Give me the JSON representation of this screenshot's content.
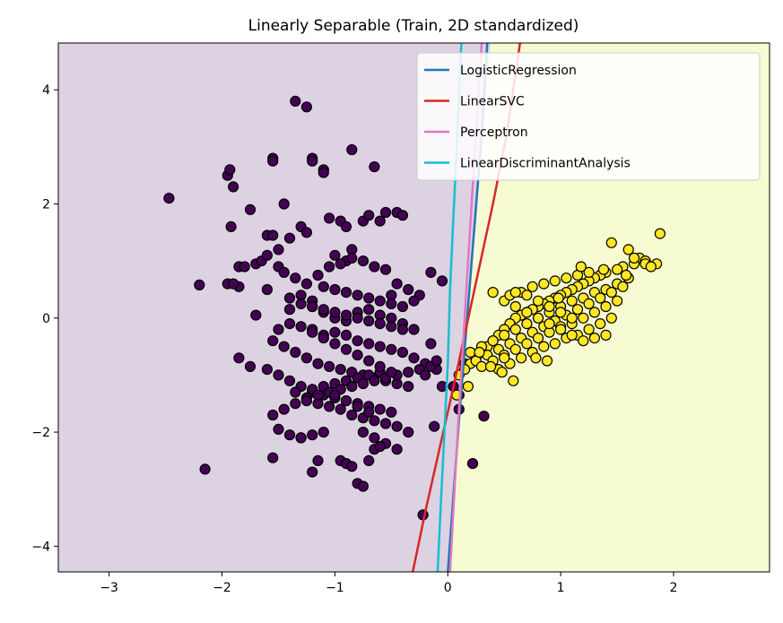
{
  "chart_data": {
    "type": "scatter",
    "title": "Linearly Separable (Train, 2D standardized)",
    "xlabel": "",
    "ylabel": "",
    "xlim": [
      -3.45,
      2.85
    ],
    "ylim": [
      -4.45,
      4.82
    ],
    "xticks": [
      -3,
      -2,
      -1,
      0,
      1,
      2
    ],
    "yticks": [
      -4,
      -2,
      0,
      2,
      4
    ],
    "xtick_labels": [
      "−3",
      "−2",
      "−1",
      "0",
      "1",
      "2"
    ],
    "ytick_labels": [
      "−4",
      "−2",
      "0",
      "2",
      "4"
    ],
    "grid": false,
    "legend_position": "top-right",
    "region_colors": {
      "class0": "#dcd2e2",
      "class1": "#f6fbd2"
    },
    "boundary_x_top": 0.38,
    "boundary_x_bottom": 0.0,
    "point_colors": {
      "class0": "#440154",
      "class1": "#fde725",
      "edge": "#000000"
    },
    "lines": [
      {
        "name": "LogisticRegression",
        "color": "#1f77b4",
        "x": [
          0.0,
          0.05,
          0.1,
          0.15,
          0.2,
          0.25,
          0.3,
          0.35
        ],
        "y": [
          -4.45,
          -3.1,
          -1.8,
          -0.55,
          0.7,
          1.95,
          3.2,
          4.82
        ]
      },
      {
        "name": "LinearSVC",
        "color": "#d62728",
        "x": [
          -0.31,
          -0.2,
          -0.08,
          0.04,
          0.16,
          0.28,
          0.4,
          0.52,
          0.64
        ],
        "y": [
          -4.45,
          -3.4,
          -2.35,
          -1.3,
          -0.2,
          0.9,
          2.0,
          3.2,
          4.82
        ]
      },
      {
        "name": "Perceptron",
        "color": "#e377c2",
        "x": [
          0.02,
          0.06,
          0.1,
          0.14,
          0.18,
          0.22,
          0.26,
          0.3
        ],
        "y": [
          -4.45,
          -3.0,
          -1.6,
          -0.3,
          1.0,
          2.3,
          3.5,
          4.82
        ]
      },
      {
        "name": "LinearDiscriminantAnalysis",
        "color": "#17becf",
        "x": [
          -0.09,
          -0.06,
          -0.03,
          0.0,
          0.02,
          0.05,
          0.08,
          0.12
        ],
        "y": [
          -4.45,
          -3.2,
          -2.0,
          -0.8,
          0.5,
          1.8,
          3.0,
          4.82
        ]
      }
    ],
    "series": [
      {
        "class": 0,
        "x": [
          -1.35,
          -1.25,
          -2.47,
          -1.95,
          -1.9,
          -1.55,
          -1.55,
          -1.2,
          -1.2,
          -1.1,
          -1.1,
          -0.85,
          -0.65,
          -1.93,
          -1.92,
          -1.45,
          -1.75,
          -1.6,
          -1.85,
          -1.55,
          -1.5,
          -1.3,
          -1.4,
          -1.25,
          -1.05,
          -0.95,
          -0.9,
          -0.75,
          -0.7,
          -0.6,
          -0.55,
          -0.45,
          -0.4,
          -0.9,
          -1.0,
          -0.85,
          -1.95,
          -1.85,
          -1.8,
          -1.7,
          -1.65,
          -1.6,
          -1.5,
          -1.45,
          -1.35,
          -1.25,
          -1.15,
          -1.05,
          -0.95,
          -0.85,
          -0.75,
          -0.65,
          -0.55,
          -0.45,
          -0.35,
          -0.25,
          -0.15,
          -0.05,
          -0.5,
          -0.3,
          -1.1,
          -1.0,
          -0.9,
          -0.8,
          -0.7,
          -0.6,
          -0.5,
          -0.4,
          -1.3,
          -1.2,
          -1.4,
          -1.6,
          -1.7,
          -1.9,
          -1.2,
          -1.1,
          -1.0,
          -0.9,
          -0.8,
          -0.7,
          -0.6,
          -0.5,
          -0.4,
          -0.3,
          -1.5,
          -1.4,
          -1.3,
          -1.2,
          -1.1,
          -1.0,
          -0.9,
          -0.8,
          -0.7,
          -0.6,
          -0.5,
          -0.4,
          -0.3,
          -0.2,
          -0.1,
          -1.55,
          -1.45,
          -1.35,
          -1.25,
          -1.15,
          -1.05,
          -0.95,
          -0.85,
          -0.75,
          -0.65,
          -0.55,
          -0.45,
          -0.35,
          -1.6,
          -1.5,
          -1.4,
          -1.3,
          -1.2,
          -1.1,
          -1.0,
          -0.9,
          -0.8,
          -0.7,
          -0.6,
          -0.5,
          -1.85,
          -1.75,
          -1.35,
          -1.25,
          -1.15,
          -1.05,
          -0.95,
          -0.85,
          -0.75,
          -0.65,
          -0.55,
          -0.45,
          -0.35,
          -1.5,
          -1.4,
          -1.3,
          -1.2,
          -1.1,
          -1.0,
          -0.9,
          -0.8,
          -0.7,
          -0.6,
          -1.55,
          -1.45,
          -1.35,
          -1.25,
          -1.15,
          -1.05,
          -0.95,
          -0.85,
          -0.75,
          -0.65,
          -0.55,
          -0.45,
          -0.35,
          -0.25,
          -0.15,
          -1.2,
          -1.1,
          -1.0,
          -0.9,
          -0.8,
          -0.7,
          -0.6,
          -0.5,
          -1.4,
          -1.3,
          -1.2,
          -1.1,
          -1.0,
          -0.9,
          -0.8,
          -0.7,
          -0.6,
          -0.5,
          -0.4,
          -1.0,
          -0.9,
          -0.8,
          -0.7,
          -1.3,
          -1.2,
          -1.1,
          -0.75,
          -0.65,
          -0.55,
          -0.45,
          -2.2,
          -2.15,
          -1.55,
          -1.15,
          -1.2,
          -0.95,
          -0.9,
          -0.85,
          -0.8,
          -0.75,
          -0.7,
          -0.65,
          -0.6,
          -0.2,
          -0.15,
          -0.1,
          -0.05,
          0.1,
          0.15,
          0.1,
          0.05,
          0.32,
          0.22,
          -0.12,
          -0.22
        ],
        "y": [
          3.8,
          3.7,
          2.1,
          2.5,
          2.3,
          2.8,
          2.75,
          2.8,
          2.75,
          2.6,
          2.55,
          2.95,
          2.65,
          2.6,
          1.6,
          2.0,
          1.9,
          1.45,
          0.9,
          1.45,
          1.2,
          1.6,
          1.4,
          1.5,
          1.75,
          1.7,
          1.6,
          1.7,
          1.8,
          1.7,
          1.85,
          1.85,
          1.8,
          1.0,
          1.1,
          1.2,
          0.6,
          0.55,
          0.9,
          0.95,
          1.0,
          1.1,
          0.9,
          0.8,
          0.7,
          0.6,
          0.75,
          0.9,
          0.95,
          1.05,
          1.0,
          0.9,
          0.85,
          0.6,
          0.5,
          0.4,
          0.8,
          0.65,
          0.4,
          0.3,
          0.55,
          0.5,
          0.45,
          0.4,
          0.35,
          0.3,
          0.25,
          0.2,
          0.4,
          0.3,
          0.15,
          0.5,
          0.05,
          0.6,
          0.2,
          0.1,
          0.0,
          -0.05,
          0.1,
          0.15,
          0.05,
          0.0,
          -0.1,
          -0.2,
          -0.2,
          -0.1,
          -0.15,
          -0.2,
          -0.3,
          -0.25,
          -0.3,
          -0.4,
          -0.45,
          -0.5,
          -0.55,
          -0.6,
          -0.7,
          -0.8,
          -0.9,
          -0.4,
          -0.5,
          -0.6,
          -0.7,
          -0.8,
          -0.85,
          -0.9,
          -0.95,
          -1.0,
          -1.05,
          -1.1,
          -1.15,
          -1.2,
          -0.9,
          -1.0,
          -1.1,
          -1.2,
          -1.3,
          -1.35,
          -1.4,
          -1.45,
          -1.5,
          -1.55,
          -1.6,
          -1.65,
          -0.7,
          -0.85,
          -1.3,
          -1.4,
          -1.5,
          -1.55,
          -1.6,
          -1.7,
          -1.75,
          -1.8,
          -1.85,
          -1.9,
          -2.0,
          -1.95,
          -2.05,
          -2.1,
          -1.25,
          -1.2,
          -1.15,
          -1.1,
          -1.05,
          -1.0,
          -0.95,
          -1.7,
          -1.6,
          -1.5,
          -1.45,
          -1.35,
          -1.3,
          -1.25,
          -1.2,
          -1.15,
          -1.1,
          -1.05,
          -1.0,
          -0.95,
          -0.9,
          -0.85,
          -0.25,
          -0.35,
          -0.45,
          -0.55,
          -0.65,
          -0.75,
          -0.85,
          -0.95,
          0.35,
          0.25,
          0.2,
          0.15,
          0.1,
          0.05,
          0.0,
          -0.05,
          -0.1,
          -0.15,
          -0.2,
          -1.35,
          -1.45,
          -1.55,
          -1.65,
          -2.1,
          -2.05,
          -2.0,
          -2.0,
          -2.1,
          -2.2,
          -2.3,
          0.58,
          -2.65,
          -2.45,
          -2.5,
          -2.7,
          -2.5,
          -2.55,
          -2.6,
          -2.9,
          -2.95,
          -2.5,
          -2.3,
          -2.25,
          -1.0,
          -0.45,
          -0.75,
          -1.2,
          -1.35,
          -0.8,
          -1.6,
          -1.2,
          -1.72,
          -2.55,
          -1.9,
          -3.45
        ]
      },
      {
        "class": 1,
        "x": [
          1.88,
          1.6,
          1.45,
          1.7,
          1.75,
          1.65,
          1.55,
          1.5,
          1.4,
          1.35,
          1.3,
          1.25,
          1.2,
          1.15,
          1.1,
          1.05,
          1.0,
          0.95,
          0.9,
          0.85,
          0.8,
          0.75,
          0.7,
          0.65,
          0.6,
          0.55,
          0.5,
          0.45,
          0.4,
          0.35,
          0.3,
          0.25,
          0.2,
          0.15,
          0.1,
          1.6,
          1.5,
          1.4,
          1.3,
          1.2,
          1.1,
          1.0,
          0.9,
          0.8,
          0.7,
          0.6,
          0.5,
          0.4,
          0.3,
          0.2,
          1.55,
          1.45,
          1.35,
          1.25,
          1.15,
          1.05,
          0.95,
          0.85,
          0.75,
          0.65,
          0.55,
          0.45,
          0.35,
          0.25,
          1.5,
          1.4,
          1.3,
          1.2,
          1.1,
          1.0,
          0.9,
          0.8,
          0.7,
          0.6,
          0.5,
          0.4,
          0.3,
          1.45,
          1.35,
          1.25,
          1.15,
          1.05,
          0.95,
          0.85,
          0.75,
          0.65,
          0.55,
          0.45,
          1.4,
          1.3,
          1.2,
          1.1,
          1.0,
          0.9,
          0.8,
          0.7,
          0.6,
          0.5,
          0.4,
          1.25,
          1.15,
          1.05,
          0.95,
          0.85,
          0.75,
          0.65,
          0.55,
          1.1,
          1.0,
          0.9,
          0.8,
          0.7,
          0.6,
          0.88,
          0.78,
          0.58,
          0.48,
          0.38,
          0.28,
          0.18,
          0.08,
          1.75,
          1.65,
          1.85,
          1.8,
          1.58,
          1.38,
          1.18,
          0.98,
          0.5
        ],
        "y": [
          1.48,
          1.2,
          1.32,
          1.05,
          1.0,
          0.95,
          0.9,
          0.85,
          0.8,
          0.75,
          0.7,
          0.65,
          0.6,
          0.55,
          0.5,
          0.45,
          0.4,
          0.35,
          0.3,
          0.25,
          0.2,
          0.15,
          0.1,
          0.05,
          0.0,
          -0.1,
          -0.2,
          -0.3,
          -0.4,
          -0.5,
          -0.6,
          -0.7,
          -0.8,
          -0.9,
          -1.0,
          0.7,
          0.6,
          0.5,
          0.45,
          0.35,
          0.3,
          0.2,
          0.1,
          0.0,
          -0.1,
          -0.2,
          -0.3,
          -0.4,
          -0.5,
          -0.6,
          0.55,
          0.45,
          0.35,
          0.25,
          0.15,
          0.05,
          -0.05,
          -0.15,
          -0.25,
          -0.35,
          -0.45,
          -0.55,
          -0.65,
          -0.75,
          0.3,
          0.2,
          0.1,
          0.0,
          -0.1,
          -0.15,
          -0.25,
          -0.35,
          -0.45,
          -0.55,
          -0.65,
          -0.75,
          -0.85,
          0.0,
          -0.1,
          -0.2,
          -0.3,
          -0.35,
          -0.45,
          -0.5,
          -0.6,
          -0.7,
          -0.8,
          -0.9,
          -0.3,
          -0.35,
          -0.4,
          -0.3,
          -0.2,
          -0.1,
          0.0,
          0.1,
          0.2,
          0.3,
          0.45,
          0.8,
          0.75,
          0.7,
          0.65,
          0.6,
          0.55,
          0.45,
          0.4,
          0.0,
          0.1,
          0.2,
          0.3,
          0.4,
          0.45,
          -0.75,
          -0.7,
          -1.1,
          -0.95,
          -0.85,
          -0.6,
          -1.2,
          -1.35,
          0.95,
          1.05,
          0.95,
          0.9,
          0.75,
          0.85,
          0.9,
          0.35,
          -0.7
        ]
      }
    ]
  }
}
